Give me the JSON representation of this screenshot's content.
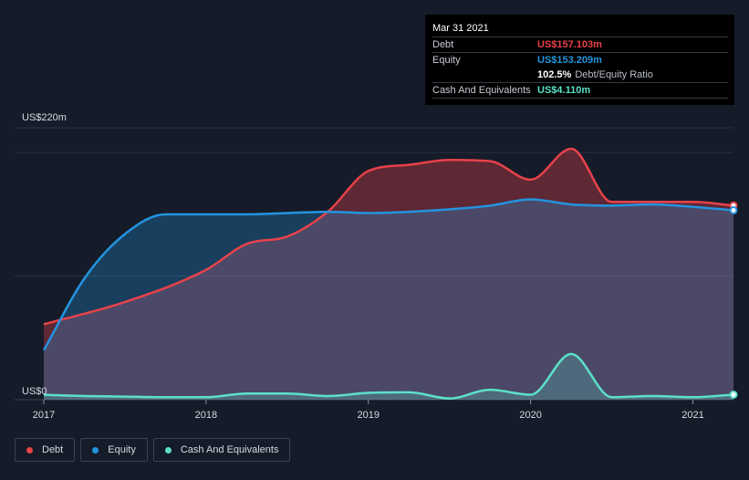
{
  "chart_data": {
    "type": "area",
    "title": "",
    "xlabel": "",
    "ylabel": "",
    "y_axis_top_label": "US$220m",
    "y_axis_bottom_label": "US$0",
    "ylim": [
      0,
      220
    ],
    "xlim": [
      2017.0,
      2021.25
    ],
    "x_ticks": [
      "2017",
      "2018",
      "2019",
      "2020",
      "2021"
    ],
    "grid": true,
    "legend_placement": "bottom-left",
    "series": [
      {
        "name": "Debt",
        "color": "#e8424b",
        "x": [
          2017.0,
          2017.5,
          2018.0,
          2018.25,
          2018.5,
          2018.75,
          2019.0,
          2019.25,
          2019.5,
          2019.75,
          2020.0,
          2020.25,
          2020.5,
          2020.75,
          2021.0,
          2021.25
        ],
        "values": [
          61,
          79,
          105,
          126,
          132,
          152,
          185,
          190,
          194,
          193,
          178,
          203,
          160,
          160,
          160,
          157.1
        ]
      },
      {
        "name": "Equity",
        "color": "#2394df",
        "x": [
          2017.0,
          2017.25,
          2017.5,
          2017.75,
          2018.0,
          2018.25,
          2018.5,
          2018.75,
          2019.0,
          2019.25,
          2019.5,
          2019.75,
          2020.0,
          2020.25,
          2020.5,
          2020.75,
          2021.0,
          2021.25
        ],
        "values": [
          40,
          98,
          134,
          150,
          150,
          150,
          151,
          152,
          151,
          152,
          154,
          157,
          162,
          158,
          157,
          158,
          156,
          153.2
        ]
      },
      {
        "name": "Cash And Equivalents",
        "color": "#5ce0c7",
        "x": [
          2017.0,
          2017.25,
          2017.5,
          2017.75,
          2018.0,
          2018.25,
          2018.5,
          2018.75,
          2019.0,
          2019.25,
          2019.5,
          2019.75,
          2020.0,
          2020.25,
          2020.5,
          2020.75,
          2021.0,
          2021.25
        ],
        "values": [
          4,
          3,
          2.5,
          2,
          2,
          5,
          5,
          3,
          5.5,
          6,
          1,
          8,
          4,
          37,
          2,
          3,
          2,
          4.1
        ]
      }
    ]
  },
  "tooltip": {
    "date": "Mar 31 2021",
    "debt_label": "Debt",
    "debt_value": "US$157.103m",
    "equity_label": "Equity",
    "equity_value": "US$153.209m",
    "ratio_value": "102.5%",
    "ratio_label": "Debt/Equity Ratio",
    "cash_label": "Cash And Equivalents",
    "cash_value": "US$4.110m"
  },
  "legend": {
    "debt": "Debt",
    "equity": "Equity",
    "cash": "Cash And Equivalents"
  },
  "colors": {
    "background": "#151b28",
    "debt": "#e8424b",
    "equity": "#2394df",
    "cash": "#5ce0c7"
  }
}
